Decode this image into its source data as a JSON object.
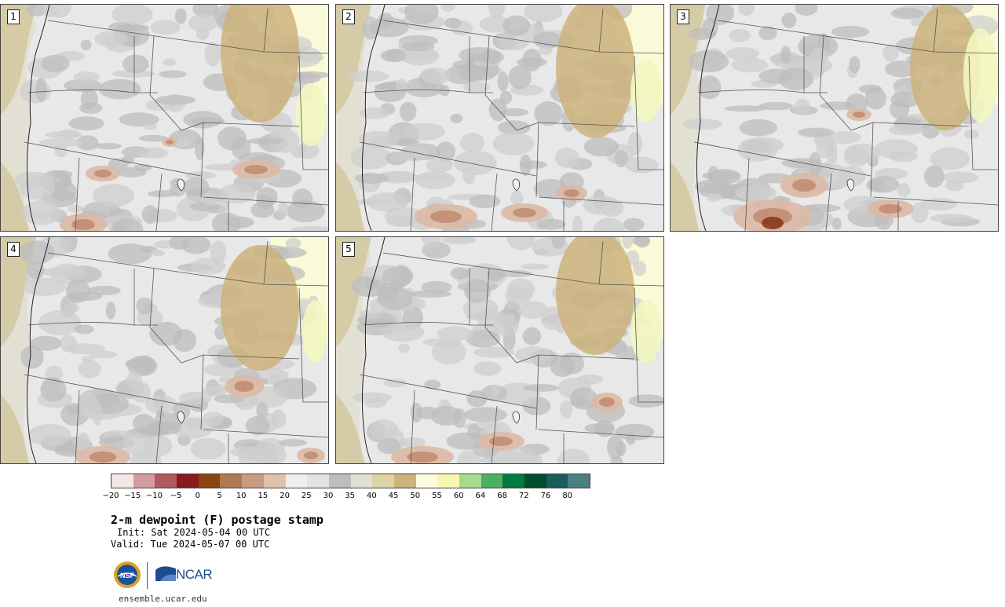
{
  "panels": [
    {
      "label": "1"
    },
    {
      "label": "2"
    },
    {
      "label": "3"
    },
    {
      "label": "4"
    },
    {
      "label": "5"
    }
  ],
  "colorbar": {
    "colors": [
      "#f2e8e6",
      "#d29b9e",
      "#b05a60",
      "#8b1a1e",
      "#8b4513",
      "#b07a55",
      "#c89c80",
      "#e0c2ac",
      "#efefef",
      "#e2e2e2",
      "#bdbdbd",
      "#e2e0d2",
      "#e0d3a8",
      "#cdb27a",
      "#fdfbe0",
      "#f7f7b0",
      "#a6db8e",
      "#4caf63",
      "#007a3d",
      "#004d2e",
      "#1a5c5c",
      "#4b7f82"
    ],
    "tick_labels": [
      "−20",
      "−15",
      "−10",
      "−5",
      "0",
      "5",
      "10",
      "15",
      "20",
      "25",
      "30",
      "35",
      "40",
      "45",
      "50",
      "55",
      "60",
      "64",
      "68",
      "72",
      "76",
      "80"
    ]
  },
  "title": "2-m dewpoint (F) postage stamp",
  "init": "Init: Sat 2024-05-04 00 UTC",
  "valid": "Valid: Tue 2024-05-07 00 UTC",
  "logos": {
    "nsf": "NSF",
    "ncar": "NCAR"
  },
  "url": "ensemble.ucar.edu"
}
